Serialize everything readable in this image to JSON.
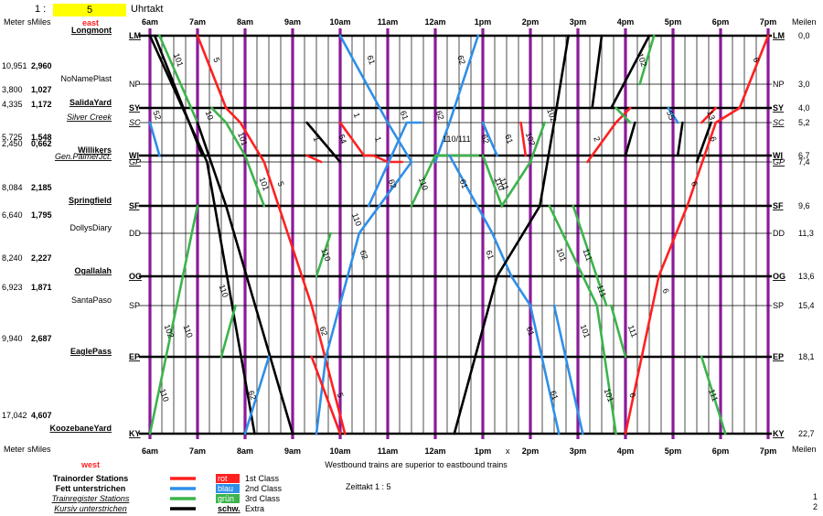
{
  "header": {
    "ratio_prefix": "1 :",
    "ratio_value": "5",
    "ratio_label": "Uhrtakt",
    "direction_top": "east",
    "direction_bottom": "west",
    "col_meter": "Meter",
    "col_smiles": "sMiles",
    "col_meilen": "Meilen",
    "times": [
      "6am",
      "7am",
      "8am",
      "9am",
      "10am",
      "11am",
      "12am",
      "1pm",
      "2pm",
      "3pm",
      "4pm",
      "5pm",
      "6pm",
      "7pm"
    ],
    "x_marker": "x",
    "note": "Westbound trains are superior to eastbound trains",
    "zeittakt": "Zeittakt 1 : 5"
  },
  "stations": [
    {
      "name": "Longmont",
      "abbr": "LM",
      "meter": "",
      "smiles": "",
      "meilen": "0,0",
      "style": "order"
    },
    {
      "name": "NoNamePlast",
      "abbr": "NP",
      "meter": "10,951",
      "smiles": "2,960",
      "meilen": "3,0",
      "style": "plain"
    },
    {
      "name": "SalidaYard",
      "abbr": "SY",
      "meter": "3,800",
      "smiles": "1,027",
      "meilen": "4,0",
      "style": "order"
    },
    {
      "name": "Silver Creek",
      "abbr": "SC",
      "meter": "4,335",
      "smiles": "1,172",
      "meilen": "5,2",
      "style": "register"
    },
    {
      "name": "Willikers",
      "abbr": "WI",
      "meter": "5,725",
      "smiles": "1,548",
      "meilen": "6,7",
      "style": "order"
    },
    {
      "name": "Gen.PalmerJct.",
      "abbr": "GP",
      "meter": "2,450",
      "smiles": "0,662",
      "meilen": "7,4",
      "style": "register"
    },
    {
      "name": "Springfield",
      "abbr": "SF",
      "meter": "8,084",
      "smiles": "2,185",
      "meilen": "9,6",
      "style": "order"
    },
    {
      "name": "DollysDiary",
      "abbr": "DD",
      "meter": "6,640",
      "smiles": "1,795",
      "meilen": "11,3",
      "style": "plain"
    },
    {
      "name": "Ogallalah",
      "abbr": "OG",
      "meter": "8,240",
      "smiles": "2,227",
      "meilen": "13,6",
      "style": "order"
    },
    {
      "name": "SantaPaso",
      "abbr": "SP",
      "meter": "6,923",
      "smiles": "1,871",
      "meilen": "15,4",
      "style": "plain"
    },
    {
      "name": "EaglePass",
      "abbr": "EP",
      "meter": "9,940",
      "smiles": "2,687",
      "meilen": "18,1",
      "style": "order"
    },
    {
      "name": "KoozebaneYard",
      "abbr": "KY",
      "meter": "17,042",
      "smiles": "4,607",
      "meilen": "22,7",
      "style": "order"
    }
  ],
  "legend": {
    "items": [
      {
        "label": "Trainorder Stations",
        "style": "bold",
        "color": "#ff2020",
        "box": "rot",
        "class": "1st Class"
      },
      {
        "label": "Fett unterstrichen",
        "style": "bold",
        "color": "#2f8fe8",
        "box": "blau",
        "class": "2nd Class"
      },
      {
        "label": "Trainregister Stations",
        "style": "italic-underline",
        "color": "#3cb44b",
        "box": "grün",
        "class": "3rd Class"
      },
      {
        "label": "Kursiv unterstrichen",
        "style": "italic-underline",
        "color": "#000000",
        "box": "schw.",
        "class": "Extra"
      }
    ],
    "page_numbers": [
      "1",
      "2"
    ]
  },
  "colors": {
    "first": "#ff2020",
    "second": "#2f8fe8",
    "third": "#3cb44b",
    "extra": "#000000",
    "hour": "#8b1a9a",
    "highlight": "#ffff00"
  },
  "chart_data": {
    "type": "line",
    "x_unit": "time of day (hours)",
    "y_unit": "station",
    "x_range": [
      6,
      19
    ],
    "train_labels": [
      {
        "text": "101",
        "color": "third",
        "t": 6.6,
        "s": "LM-NP"
      },
      {
        "text": "5",
        "color": "first",
        "t": 7.4,
        "s": "LM-NP"
      },
      {
        "text": "61",
        "color": "second",
        "t": 10.65,
        "s": "LM-NP"
      },
      {
        "text": "62",
        "color": "second",
        "t": 12.55,
        "s": "LM-NP"
      },
      {
        "text": "102",
        "color": "third",
        "t": 16.35,
        "s": "LM-NP"
      },
      {
        "text": "6",
        "color": "first",
        "t": 18.75,
        "s": "LM-NP"
      },
      {
        "text": "52",
        "color": "second",
        "t": 6.15,
        "s": "SY-SC"
      },
      {
        "text": "10",
        "color": "first",
        "t": 7.25,
        "s": "SY-SC"
      },
      {
        "text": "1",
        "color": "first",
        "t": 10.35,
        "s": "SY-SC"
      },
      {
        "text": "61",
        "color": "second",
        "t": 11.35,
        "s": "SY-SC"
      },
      {
        "text": "62",
        "color": "second",
        "t": 12.1,
        "s": "SY-SC"
      },
      {
        "text": "102",
        "color": "third",
        "t": 14.45,
        "s": "SY-SC"
      },
      {
        "text": "55",
        "color": "second",
        "t": 16.95,
        "s": "SY-SC"
      },
      {
        "text": "13",
        "color": "first",
        "t": 17.8,
        "s": "SY-SC"
      },
      {
        "text": "101",
        "color": "third",
        "t": 7.95,
        "s": "SC-WI"
      },
      {
        "text": "1",
        "color": "first",
        "t": 9.5,
        "s": "SC-WI"
      },
      {
        "text": "54",
        "color": "black",
        "t": 10.05,
        "s": "SC-WI"
      },
      {
        "text": "1",
        "color": "first",
        "t": 10.8,
        "s": "SC-WI"
      },
      {
        "text": "110/111",
        "color": "third",
        "t": 12.45,
        "s": "SC-WI"
      },
      {
        "text": "62",
        "color": "second",
        "t": 13.05,
        "s": "SC-WI"
      },
      {
        "text": "61",
        "color": "second",
        "t": 13.55,
        "s": "SC-WI"
      },
      {
        "text": "102",
        "color": "third",
        "t": 14.0,
        "s": "SC-WI"
      },
      {
        "text": "2",
        "color": "first",
        "t": 15.4,
        "s": "SC-WI"
      },
      {
        "text": "6",
        "color": "first",
        "t": 17.85,
        "s": "SC-WI"
      },
      {
        "text": "101",
        "color": "third",
        "t": 8.4,
        "s": "GP-SF"
      },
      {
        "text": "5",
        "color": "first",
        "t": 8.75,
        "s": "GP-SF"
      },
      {
        "text": "62",
        "color": "second",
        "t": 11.1,
        "s": "GP-SF"
      },
      {
        "text": "110",
        "color": "third",
        "t": 11.75,
        "s": "GP-SF"
      },
      {
        "text": "61",
        "color": "second",
        "t": 12.6,
        "s": "GP-SF"
      },
      {
        "text": "110",
        "color": "third",
        "t": 13.35,
        "s": "GP-SF"
      },
      {
        "text": "111",
        "color": "third",
        "t": 13.45,
        "s": "GP-SF"
      },
      {
        "text": "6",
        "color": "first",
        "t": 17.45,
        "s": "GP-SF"
      },
      {
        "text": "110",
        "color": "third",
        "t": 10.35,
        "s": "SF-DD"
      },
      {
        "text": "62",
        "color": "second",
        "t": 10.5,
        "s": "DD-OG"
      },
      {
        "text": "61",
        "color": "second",
        "t": 13.15,
        "s": "DD-OG"
      },
      {
        "text": "101",
        "color": "third",
        "t": 14.65,
        "s": "DD-OG"
      },
      {
        "text": "111",
        "color": "third",
        "t": 15.2,
        "s": "DD-OG"
      },
      {
        "text": "110",
        "color": "third",
        "t": 9.7,
        "s": "DD-OG"
      },
      {
        "text": "110",
        "color": "third",
        "t": 7.55,
        "s": "OG-SP"
      },
      {
        "text": "111",
        "color": "third",
        "t": 15.5,
        "s": "OG-SP"
      },
      {
        "text": "6",
        "color": "first",
        "t": 16.85,
        "s": "OG-SP"
      },
      {
        "text": "101",
        "color": "third",
        "t": 15.15,
        "s": "SP-EP"
      },
      {
        "text": "102",
        "color": "third",
        "t": 6.4,
        "s": "SP-EP"
      },
      {
        "text": "110",
        "color": "third",
        "t": 6.8,
        "s": "SP-EP"
      },
      {
        "text": "62",
        "color": "second",
        "t": 9.65,
        "s": "SP-EP"
      },
      {
        "text": "61",
        "color": "second",
        "t": 14.0,
        "s": "SP-EP"
      },
      {
        "text": "111",
        "color": "third",
        "t": 16.15,
        "s": "SP-EP"
      },
      {
        "text": "110",
        "color": "third",
        "t": 6.3,
        "s": "EP-KY"
      },
      {
        "text": "62",
        "color": "second",
        "t": 8.15,
        "s": "EP-KY"
      },
      {
        "text": "5",
        "color": "first",
        "t": 10.0,
        "s": "EP-KY"
      },
      {
        "text": "61",
        "color": "second",
        "t": 14.5,
        "s": "EP-KY"
      },
      {
        "text": "101",
        "color": "third",
        "t": 15.65,
        "s": "EP-KY"
      },
      {
        "text": "6",
        "color": "first",
        "t": 16.15,
        "s": "EP-KY"
      },
      {
        "text": "111",
        "color": "third",
        "t": 17.85,
        "s": "EP-KY"
      }
    ]
  }
}
